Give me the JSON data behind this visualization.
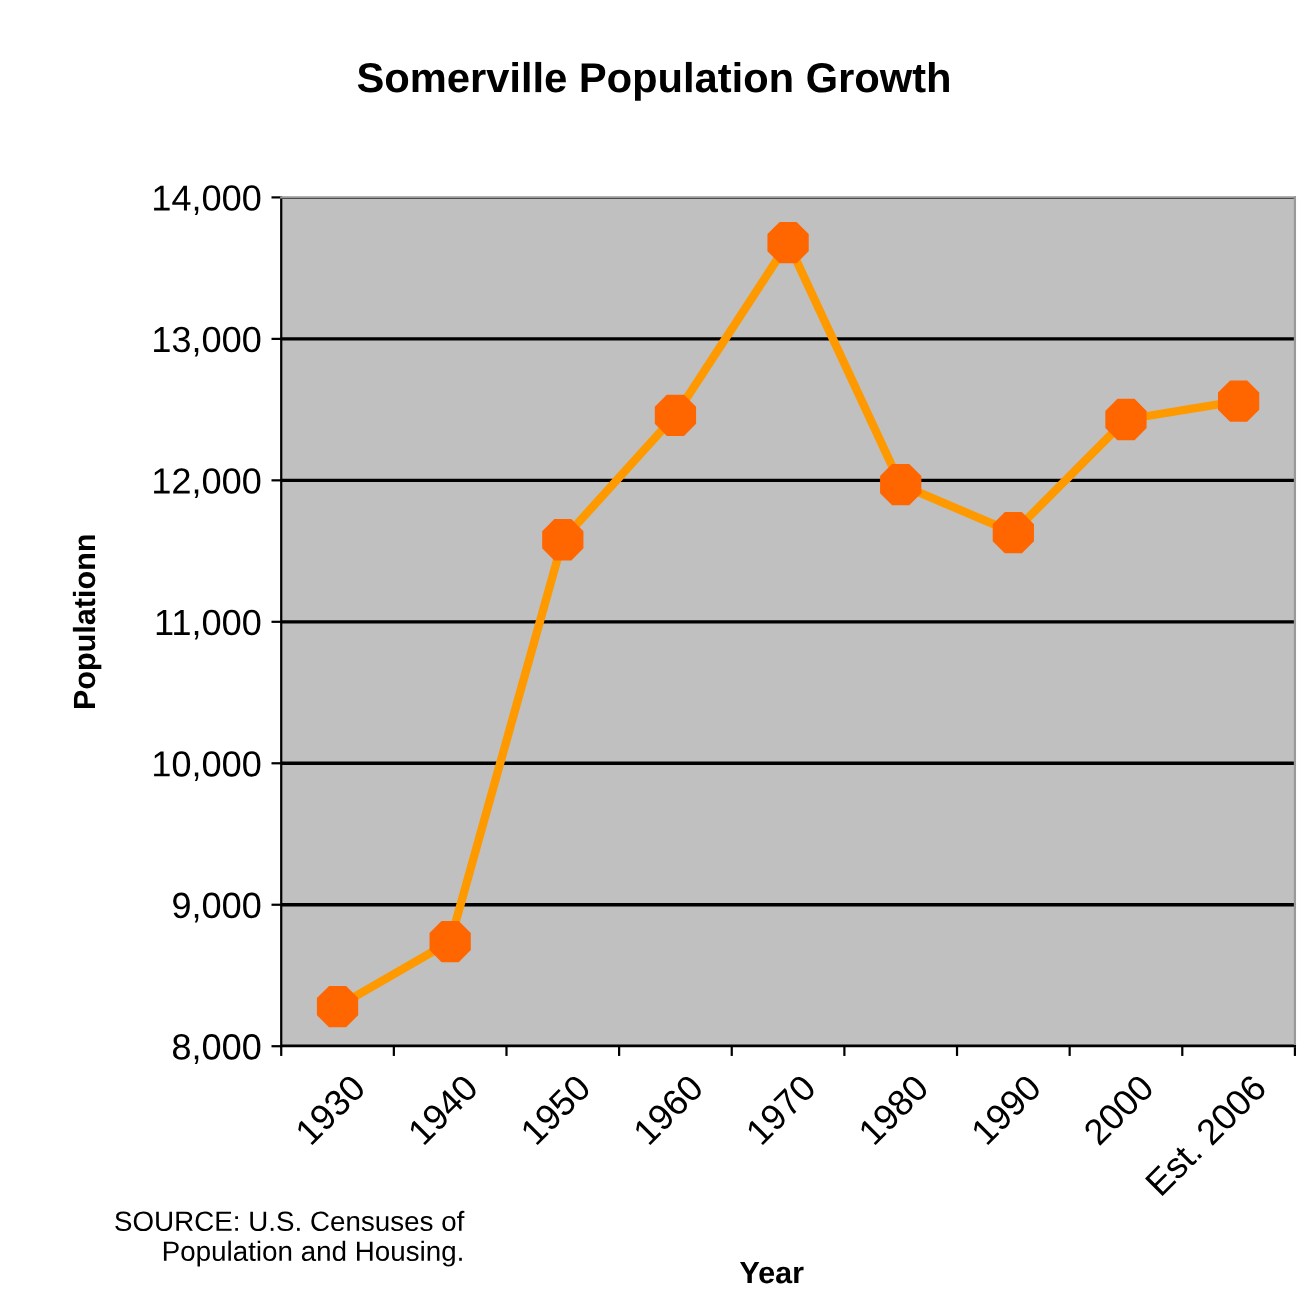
{
  "chart_data": {
    "type": "line",
    "title": "Somerville Population Growth",
    "xlabel": "Year",
    "ylabel": "Populationn",
    "categories": [
      "1930",
      "1940",
      "1950",
      "1960",
      "1970",
      "1980",
      "1990",
      "2000",
      "Est. 2006"
    ],
    "series": [
      {
        "color": "#ff9900",
        "values": [
          8280,
          8740,
          11580,
          12460,
          13680,
          11970,
          11630,
          12430,
          12560
        ]
      }
    ],
    "ylim": [
      8000,
      14000
    ],
    "yticks": [
      {
        "value": 8000,
        "label": "8,000"
      },
      {
        "value": 9000,
        "label": "9,000"
      },
      {
        "value": 10000,
        "label": "10,000"
      },
      {
        "value": 11000,
        "label": "11,000"
      },
      {
        "value": 12000,
        "label": "12,000"
      },
      {
        "value": 13000,
        "label": "13,000"
      },
      {
        "value": 14000,
        "label": "14,000"
      }
    ],
    "grid": "y",
    "marker": "circle",
    "line_style": "solid",
    "legend": false,
    "annotations": [
      "SOURCE: U.S. Censuses of\nPopulation and Housing."
    ]
  }
}
